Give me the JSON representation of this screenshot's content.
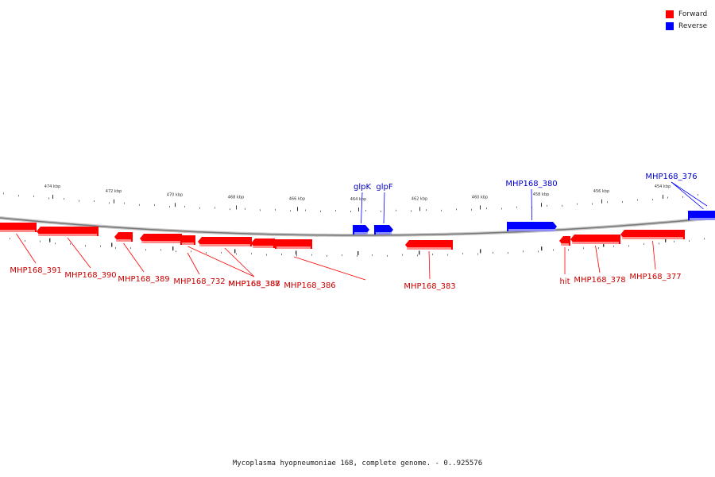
{
  "legend": {
    "forward_label": "Forward",
    "forward_color": "#ff0000",
    "reverse_label": "Reverse",
    "reverse_color": "#0000ff"
  },
  "caption": "Mycoplasma hyopneumoniae 168, complete genome. - 0..925576",
  "scale_labels": [
    "474 kbp",
    "472 kbp",
    "470 kbp",
    "468 kbp",
    "466 kbp",
    "464 kbp",
    "462 kbp",
    "460 kbp",
    "458 kbp",
    "456 kbp",
    "454 kbp"
  ],
  "genes": [
    {
      "label": "MHP168_391",
      "strand": "forward"
    },
    {
      "label": "MHP168_390",
      "strand": "forward"
    },
    {
      "label": "MHP168_389",
      "strand": "forward"
    },
    {
      "label": "MHP168_732",
      "strand": "forward"
    },
    {
      "label": "MHP168_388",
      "strand": "forward"
    },
    {
      "label": "MHP168_387",
      "strand": "forward"
    },
    {
      "label": "MHP168_386",
      "strand": "forward"
    },
    {
      "label": "glpK",
      "strand": "reverse"
    },
    {
      "label": "glpF",
      "strand": "reverse"
    },
    {
      "label": "MHP168_383",
      "strand": "forward"
    },
    {
      "label": "MHP168_380",
      "strand": "reverse"
    },
    {
      "label": "hit",
      "strand": "forward"
    },
    {
      "label": "MHP168_378",
      "strand": "forward"
    },
    {
      "label": "MHP168_377",
      "strand": "forward"
    },
    {
      "label": "MHP168_376",
      "strand": "reverse"
    }
  ]
}
